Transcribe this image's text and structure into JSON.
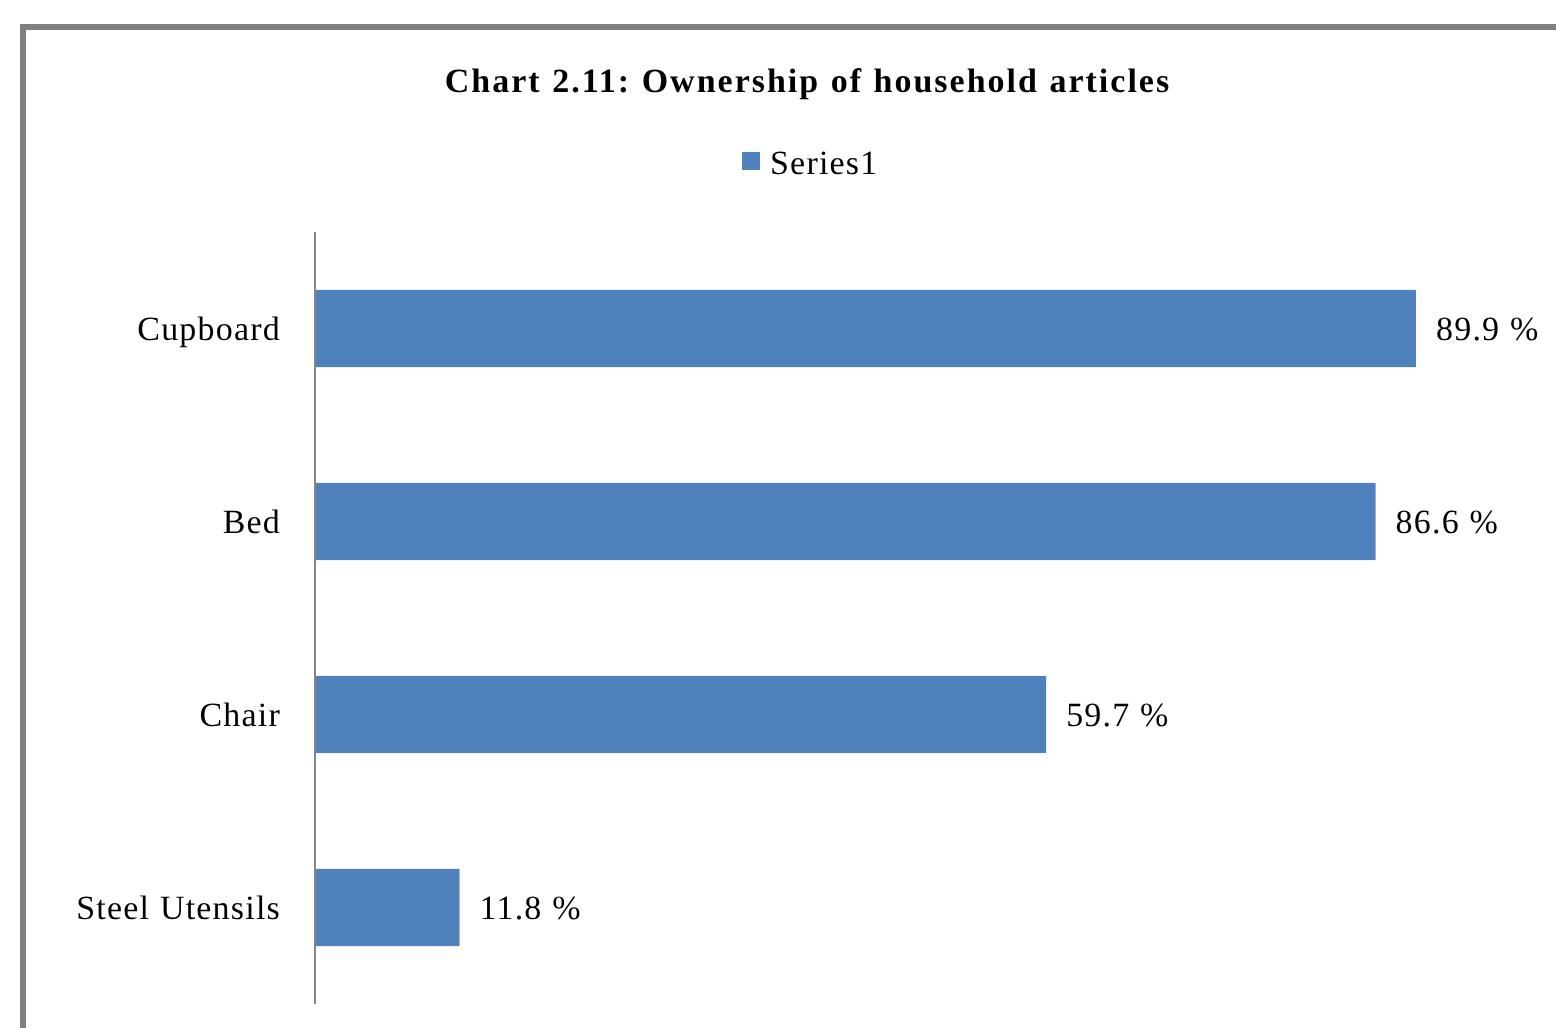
{
  "chart_data": {
    "type": "bar",
    "orientation": "horizontal",
    "title": "Chart 2.11: Ownership of household articles",
    "categories": [
      "Cupboard",
      "Bed",
      "Chair",
      "Steel Utensils"
    ],
    "series": [
      {
        "name": "Series1",
        "color": "#4f81bd",
        "values": [
          89.9,
          86.6,
          59.7,
          11.8
        ],
        "value_labels": [
          "89.9 %",
          "86.6 %",
          "59.7 %",
          "11.8 %"
        ]
      }
    ],
    "legend": "top"
  }
}
